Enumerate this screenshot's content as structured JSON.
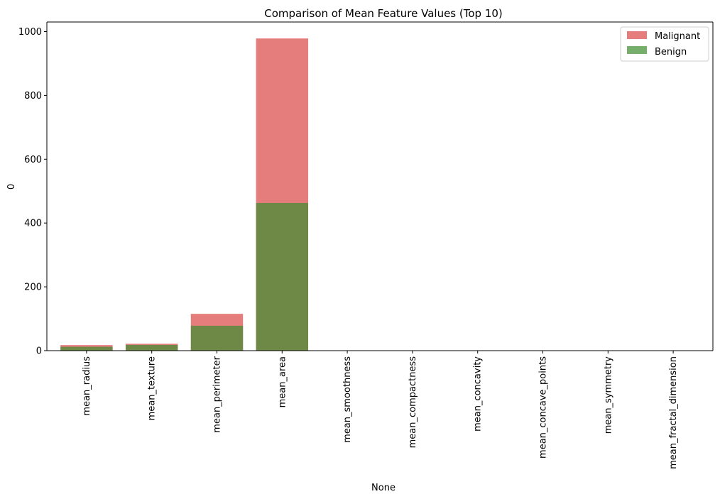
{
  "chart_data": {
    "type": "bar",
    "title": "Comparison of Mean Feature Values (Top 10)",
    "xlabel": "None",
    "ylabel": "0",
    "ylim": [
      0,
      1030
    ],
    "yticks": [
      0,
      200,
      400,
      600,
      800,
      1000
    ],
    "ytick_labels": [
      "0",
      "200",
      "400",
      "600",
      "800",
      "1000"
    ],
    "categories": [
      "mean_radius",
      "mean_texture",
      "mean_perimeter",
      "mean_area",
      "mean_smoothness",
      "mean_compactness",
      "mean_concavity",
      "mean_concave_points",
      "mean_symmetry",
      "mean_fractal_dimension"
    ],
    "overlay": true,
    "series": [
      {
        "name": "Malignant",
        "color": "#e06666",
        "alpha": 0.85,
        "values": [
          17.46,
          21.6,
          115.4,
          978.4,
          0.103,
          0.145,
          0.161,
          0.088,
          0.193,
          0.063
        ]
      },
      {
        "name": "Benign",
        "color": "#3c8d2e",
        "alpha": 0.7,
        "values": [
          12.15,
          17.9,
          78.1,
          462.8,
          0.092,
          0.08,
          0.046,
          0.026,
          0.174,
          0.063
        ]
      }
    ],
    "legend_position": "top-right",
    "grid": false
  }
}
